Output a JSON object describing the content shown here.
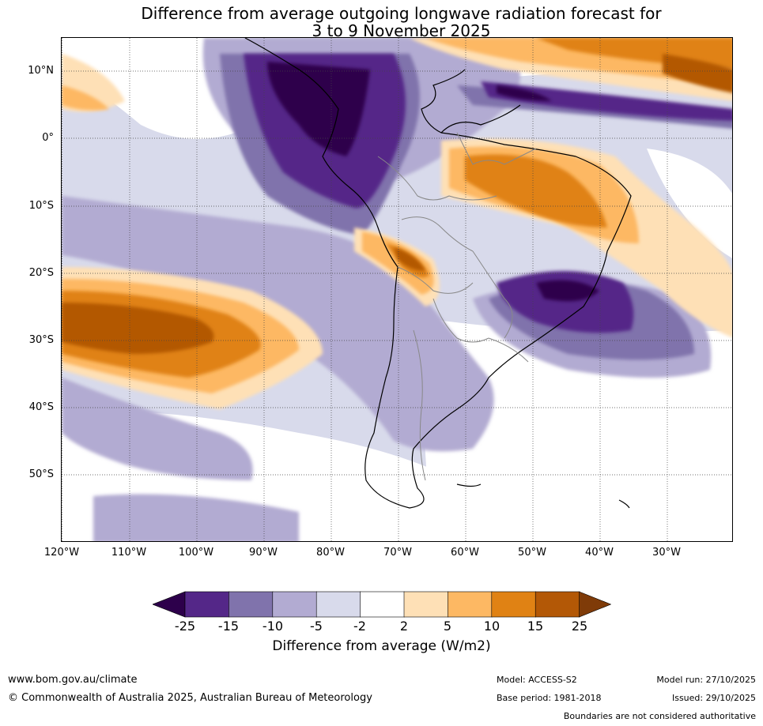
{
  "title": {
    "line1": "Difference from average outgoing longwave radiation forecast for",
    "line2": "3 to 9 November 2025"
  },
  "map": {
    "region": "South America and surrounding oceans",
    "lat_labels": [
      "10°N",
      "0°",
      "10°S",
      "20°S",
      "30°S",
      "40°S",
      "50°S"
    ],
    "lon_labels": [
      "120°W",
      "110°W",
      "100°W",
      "90°W",
      "80°W",
      "70°W",
      "60°W",
      "50°W",
      "40°W",
      "30°W"
    ]
  },
  "colorbar": {
    "ticks": [
      "-25",
      "-15",
      "-10",
      "-5",
      "-2",
      "2",
      "5",
      "10",
      "15",
      "25"
    ],
    "label": "Difference from average (W/m2)",
    "colors": [
      "#2d004b",
      "#542788",
      "#8073ac",
      "#b2abd2",
      "#d8daeb",
      "#ffffff",
      "#fee0b6",
      "#fdb863",
      "#e08214",
      "#b35806",
      "#7f3b08"
    ]
  },
  "footer": {
    "website": "www.bom.gov.au/climate",
    "copyright": "© Commonwealth of Australia 2025, Australian Bureau of Meteorology",
    "model": "Model: ACCESS-S2",
    "base_period": "Base period: 1981-2018",
    "model_run": "Model run: 27/10/2025",
    "issued": "Issued: 29/10/2025",
    "disclaimer": "Boundaries are not considered authoritative"
  }
}
